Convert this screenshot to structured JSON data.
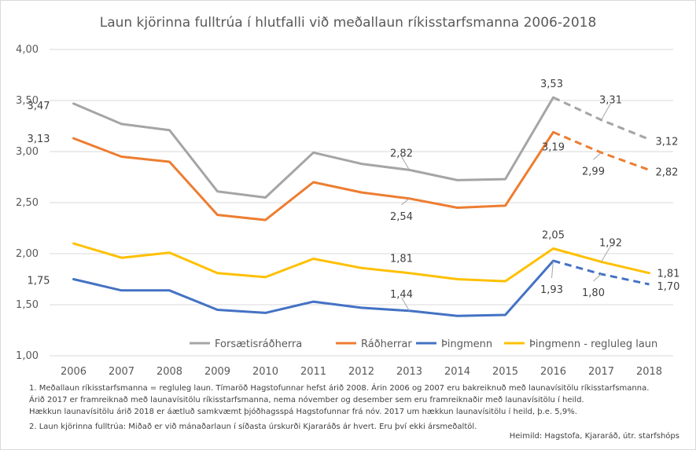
{
  "chart_data": {
    "type": "line",
    "title": "Laun kjörinna fulltrúa í hlutfalli við meðallaun ríkisstarfsmanna 2006-2018",
    "x": [
      "2006",
      "2007",
      "2008",
      "2009",
      "2010",
      "2011",
      "2012",
      "2013",
      "2014",
      "2015",
      "2016",
      "2017",
      "2018"
    ],
    "ylim": [
      1.0,
      4.0
    ],
    "yticks": [
      "1,00",
      "1,50",
      "2,00",
      "2,50",
      "3,00",
      "3,50",
      "4,00"
    ],
    "grid": true,
    "legend_position": "bottom-right",
    "series": [
      {
        "name": "Forsætisráðherra",
        "color": "#a5a5a5",
        "values": [
          3.47,
          3.27,
          3.21,
          2.61,
          2.55,
          2.99,
          2.88,
          2.82,
          2.72,
          2.73,
          3.53,
          3.31,
          3.12
        ],
        "dashed_from": 10
      },
      {
        "name": "Ráðherrar",
        "color": "#ed7d31",
        "values": [
          3.13,
          2.95,
          2.9,
          2.38,
          2.33,
          2.7,
          2.6,
          2.54,
          2.45,
          2.47,
          3.19,
          2.99,
          2.82
        ],
        "dashed_from": 10
      },
      {
        "name": "Þingmenn",
        "color": "#4472c4",
        "values": [
          1.75,
          1.64,
          1.64,
          1.45,
          1.42,
          1.53,
          1.47,
          1.44,
          1.39,
          1.4,
          1.93,
          1.8,
          1.7
        ],
        "dashed_from": 10
      },
      {
        "name": "Þingmenn - regluleg laun",
        "color": "#ffc000",
        "values": [
          2.1,
          1.96,
          2.01,
          1.81,
          1.77,
          1.95,
          1.86,
          1.81,
          1.75,
          1.73,
          2.05,
          1.92,
          1.81
        ],
        "dashed_from": null
      }
    ],
    "data_labels": [
      {
        "series": 0,
        "index": 0,
        "text": "3,47",
        "dx": -30,
        "dy": 2
      },
      {
        "series": 0,
        "index": 7,
        "text": "2,82",
        "dx": -10,
        "dy": -22
      },
      {
        "series": 0,
        "index": 10,
        "text": "3,53",
        "dx": -2,
        "dy": -18
      },
      {
        "series": 0,
        "index": 11,
        "text": "3,31",
        "dx": 12,
        "dy": -26
      },
      {
        "series": 0,
        "index": 12,
        "text": "3,12",
        "dx": 8,
        "dy": 2
      },
      {
        "series": 1,
        "index": 0,
        "text": "3,13",
        "dx": -30,
        "dy": 0
      },
      {
        "series": 1,
        "index": 7,
        "text": "2,54",
        "dx": -10,
        "dy": 22
      },
      {
        "series": 1,
        "index": 10,
        "text": "3,19",
        "dx": 0,
        "dy": 18
      },
      {
        "series": 1,
        "index": 11,
        "text": "2,99",
        "dx": -10,
        "dy": 23
      },
      {
        "series": 1,
        "index": 12,
        "text": "2,82",
        "dx": 8,
        "dy": 2
      },
      {
        "series": 2,
        "index": 0,
        "text": "1,75",
        "dx": -30,
        "dy": 1
      },
      {
        "series": 2,
        "index": 7,
        "text": "1,44",
        "dx": -10,
        "dy": -22
      },
      {
        "series": 2,
        "index": 10,
        "text": "1,93",
        "dx": -2,
        "dy": 36
      },
      {
        "series": 2,
        "index": 11,
        "text": "1,80",
        "dx": -10,
        "dy": 23
      },
      {
        "series": 2,
        "index": 12,
        "text": "1,70",
        "dx": 10,
        "dy": 2
      },
      {
        "series": 3,
        "index": 7,
        "text": "1,81",
        "dx": -10,
        "dy": -19
      },
      {
        "series": 3,
        "index": 10,
        "text": "2,05",
        "dx": 0,
        "dy": -18
      },
      {
        "series": 3,
        "index": 11,
        "text": "1,92",
        "dx": 12,
        "dy": -25
      },
      {
        "series": 3,
        "index": 12,
        "text": "1,81",
        "dx": 10,
        "dy": 0
      }
    ]
  },
  "notes": [
    "1. Meðallaun ríkisstarfsmanna = regluleg laun. Tímaröð Hagstofunnar hefst árið 2008. Árin 2006 og 2007 eru bakreiknuð með launavísitölu ríkisstarfsmanna.",
    "Árið 2017 er framreiknað með launavísitölu ríkisstarfsmanna, nema nóvember og desember sem eru framreiknaðir með launavísitölu í heild.",
    "Hækkun launavísitölu árið 2018 er áætluð samkvæmt þjóðhagsspá Hagstofunnar frá nóv. 2017 um hækkun launavísitölu í heild, þ.e. 5,9%.",
    "2. Laun kjörinna fulltrúa: Miðað er við mánaðarlaun í síðasta úrskurði Kjararáðs ár hvert. Eru því ekki ársmeðaltöl."
  ],
  "source": "Heimild: Hagstofa, Kjararáð, útr. starfshóps"
}
